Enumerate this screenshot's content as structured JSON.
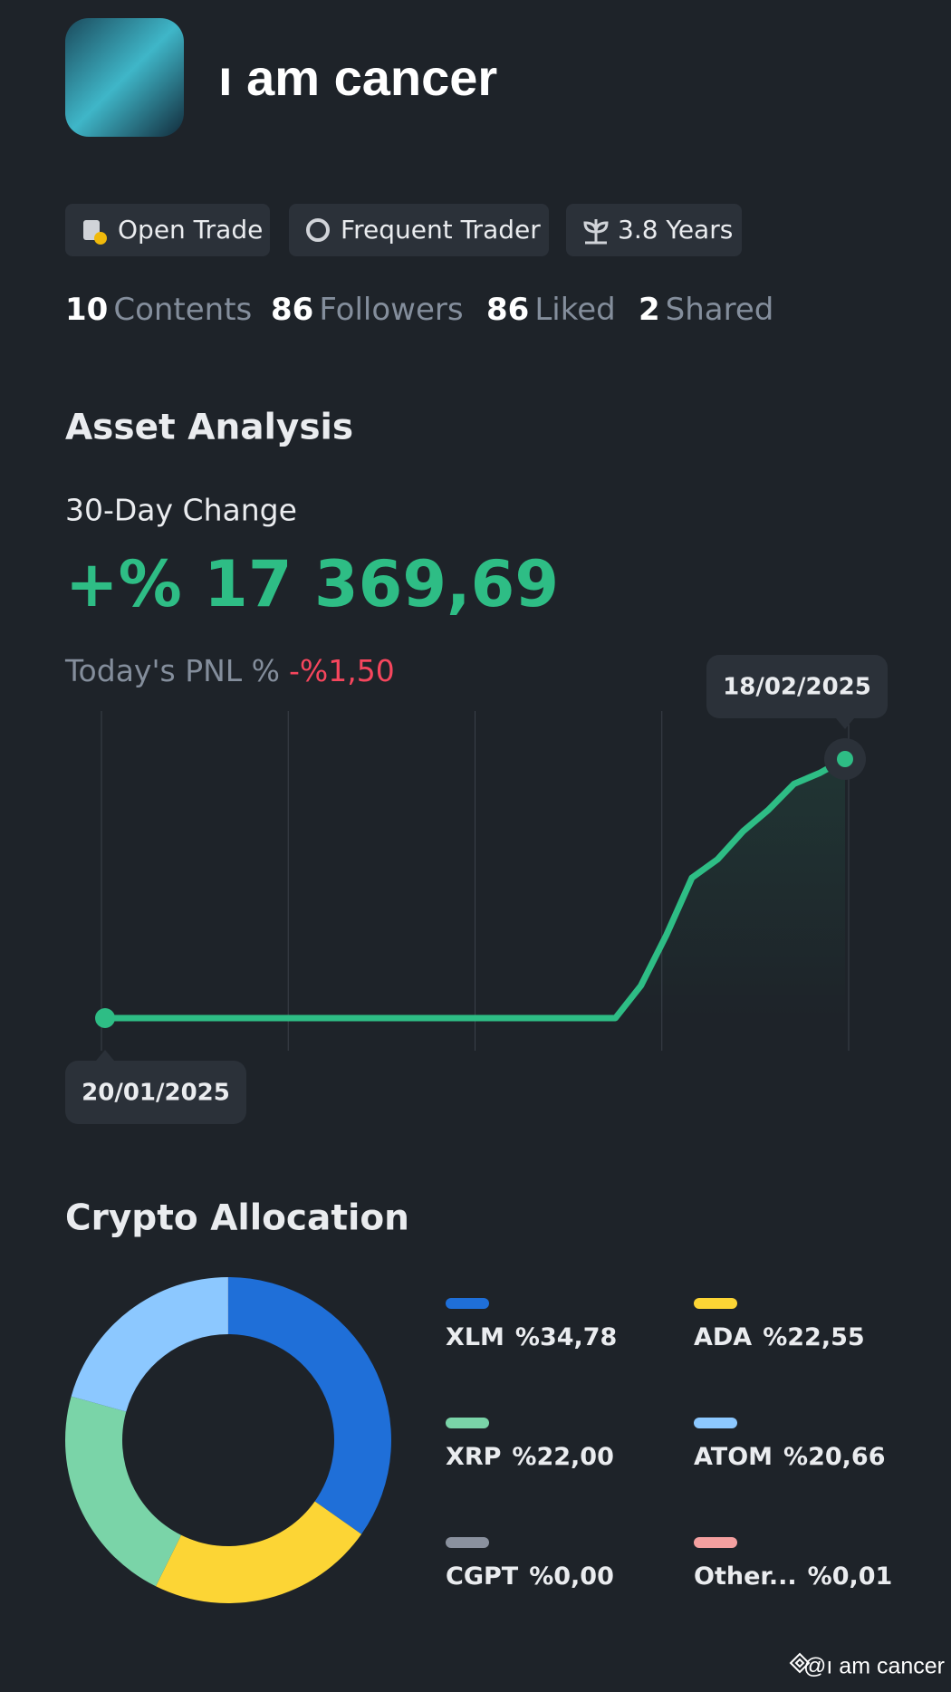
{
  "profile": {
    "name": "ı am cancer",
    "badges": [
      "Open Trade",
      "Frequent Trader",
      "3.8 Years"
    ],
    "stats": [
      {
        "count": 10,
        "label": "Contents"
      },
      {
        "count": 86,
        "label": "Followers"
      },
      {
        "count": 86,
        "label": "Liked"
      },
      {
        "count": 2,
        "label": "Shared"
      }
    ]
  },
  "asset_analysis": {
    "title": "Asset Analysis",
    "change_label": "30-Day Change",
    "change_value": "+% 17 369,69",
    "pnl_label": "Today's PNL %",
    "pnl_value": "-%1,50"
  },
  "chart_data": [
    {
      "type": "line",
      "color": "#2ebd85",
      "categories": [
        "20/01/2025",
        null,
        null,
        null,
        null,
        null,
        null,
        null,
        null,
        null,
        null,
        null,
        null,
        null,
        null,
        null,
        null,
        null,
        null,
        null,
        null,
        null,
        null,
        null,
        null,
        null,
        null,
        null,
        null,
        "18/02/2025"
      ],
      "values": [
        0,
        0,
        0,
        0,
        0,
        0,
        0,
        0,
        0,
        0,
        0,
        0,
        0,
        0,
        0,
        0,
        0,
        0,
        0,
        0,
        0,
        2171,
        5573,
        9408,
        10638,
        12520,
        13967,
        15704,
        16428,
        17369.69
      ]
    },
    {
      "type": "donut",
      "title": "Crypto Allocation",
      "categories": [
        "XLM",
        "ADA",
        "XRP",
        "ATOM",
        "CGPT",
        "Other..."
      ],
      "values": [
        34.78,
        22.55,
        22.0,
        20.66,
        0.0,
        0.01
      ],
      "value_labels": [
        "%34,78",
        "%22,55",
        "%22,00",
        "%20,66",
        "%0,00",
        "%0,01"
      ],
      "colors": [
        "#1f6fd8",
        "#fcd535",
        "#7ad4a8",
        "#8cc8ff",
        "#8a919e",
        "#f4a0a0"
      ]
    }
  ],
  "watermark": "@ı am cancer"
}
